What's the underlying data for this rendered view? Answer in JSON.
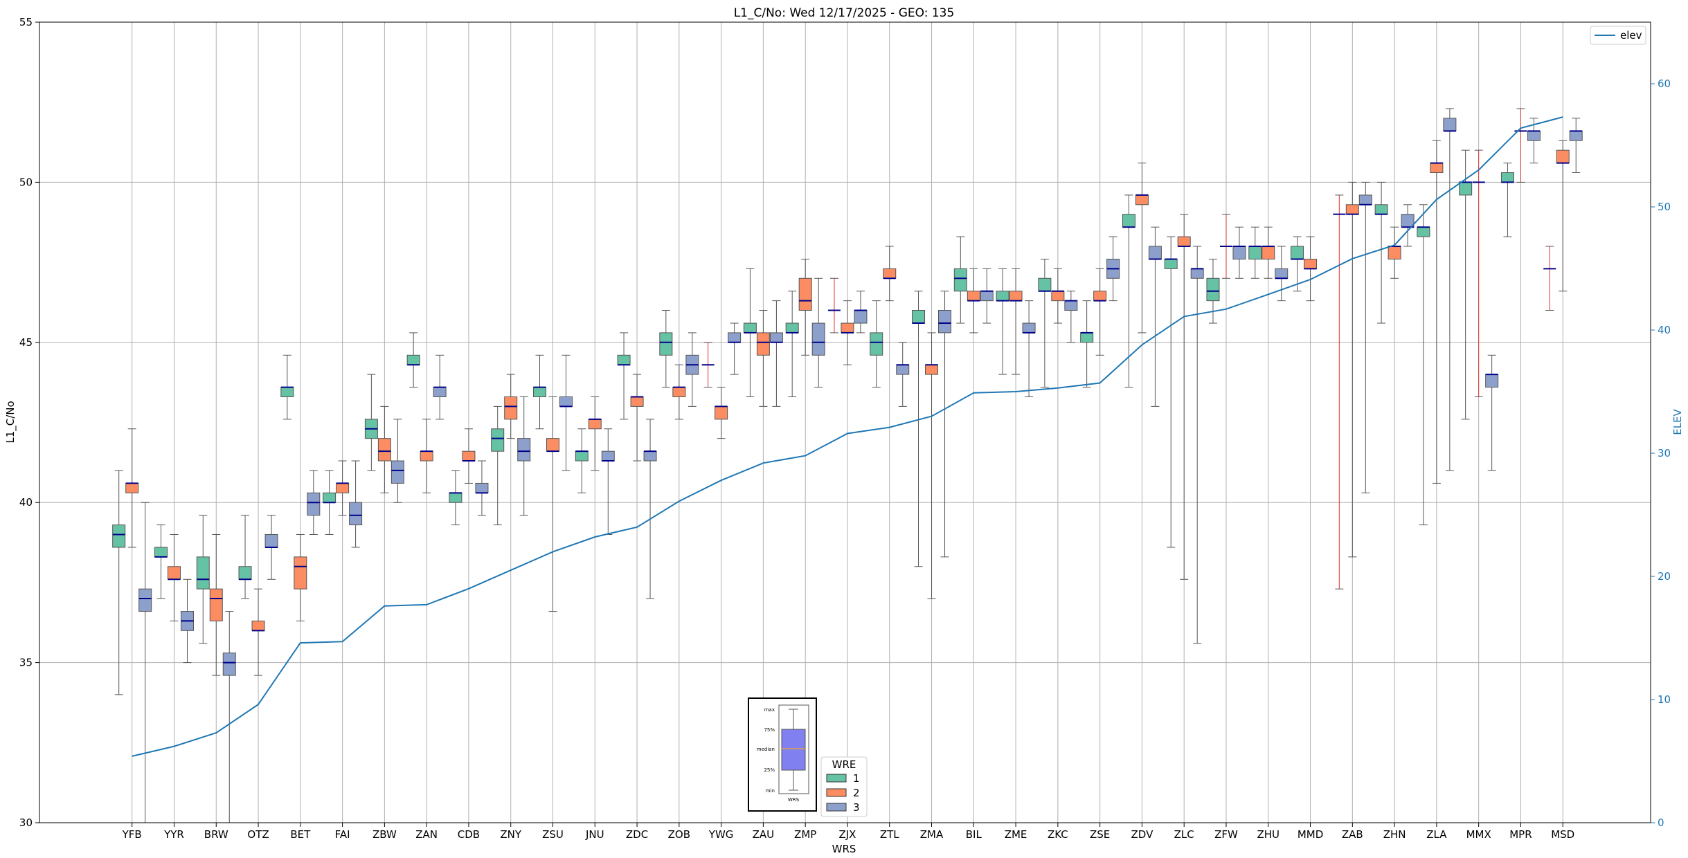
{
  "chart_data": {
    "type": "box",
    "title": "L1_C/No: Wed 12/17/2025 - GEO: 135",
    "xlabel": "WRS",
    "ylabel": "L1_C/No",
    "y2label": "ELEV",
    "ylim": [
      30,
      55
    ],
    "y2lim": [
      0,
      65
    ],
    "yticks": [
      30,
      35,
      40,
      45,
      50,
      55
    ],
    "y2ticks": [
      0,
      10,
      20,
      30,
      40,
      50,
      60
    ],
    "grid": true,
    "legend_line": "elev",
    "legend_title": "WRE",
    "legend_entries": [
      {
        "label": "1",
        "color": "#66c2a5"
      },
      {
        "label": "2",
        "color": "#fc8d62"
      },
      {
        "label": "3",
        "color": "#8da0cb"
      }
    ],
    "inset_labels": {
      "max": "max",
      "q3": "75%",
      "median": "median",
      "q1": "25%",
      "min": "min",
      "xlabel": "WRS"
    },
    "categories": [
      "YFB",
      "YYR",
      "BRW",
      "OTZ",
      "BET",
      "FAI",
      "ZBW",
      "ZAN",
      "CDB",
      "ZNY",
      "ZSU",
      "JNU",
      "ZDC",
      "ZOB",
      "YWG",
      "ZAU",
      "ZMP",
      "ZJX",
      "ZTL",
      "ZMA",
      "BIL",
      "ZME",
      "ZKC",
      "ZSE",
      "ZDV",
      "ZLC",
      "ZFW",
      "ZHU",
      "MMD",
      "ZAB",
      "ZHN",
      "ZLA",
      "MMX",
      "MPR",
      "MSD"
    ],
    "elev": [
      5.4,
      6.2,
      7.3,
      9.6,
      14.6,
      14.7,
      17.6,
      17.7,
      19.0,
      20.5,
      22.0,
      23.2,
      24.0,
      26.1,
      27.8,
      29.2,
      29.8,
      31.6,
      32.1,
      33.0,
      34.9,
      35.0,
      35.3,
      35.7,
      38.8,
      41.1,
      41.7,
      42.9,
      44.1,
      45.8,
      46.9,
      50.6,
      53.0,
      56.4,
      57.3
    ],
    "boxes": [
      {
        "cat": "YFB",
        "wre": 1,
        "min": 34.0,
        "q1": 38.6,
        "med": 39.0,
        "q3": 39.3,
        "max": 41.0
      },
      {
        "cat": "YFB",
        "wre": 2,
        "min": 38.6,
        "q1": 40.3,
        "med": 40.6,
        "q3": 40.6,
        "max": 42.3
      },
      {
        "cat": "YFB",
        "wre": 3,
        "min": 30.0,
        "q1": 36.6,
        "med": 37.0,
        "q3": 37.3,
        "max": 40.0
      },
      {
        "cat": "YYR",
        "wre": 1,
        "min": 37.0,
        "q1": 38.3,
        "med": 38.3,
        "q3": 38.6,
        "max": 39.3
      },
      {
        "cat": "YYR",
        "wre": 2,
        "min": 36.3,
        "q1": 37.6,
        "med": 37.6,
        "q3": 38.0,
        "max": 39.0
      },
      {
        "cat": "YYR",
        "wre": 3,
        "min": 35.0,
        "q1": 36.0,
        "med": 36.3,
        "q3": 36.6,
        "max": 37.6
      },
      {
        "cat": "BRW",
        "wre": 1,
        "min": 35.6,
        "q1": 37.3,
        "med": 37.6,
        "q3": 38.3,
        "max": 39.6
      },
      {
        "cat": "BRW",
        "wre": 2,
        "min": 34.6,
        "q1": 36.3,
        "med": 37.0,
        "q3": 37.3,
        "max": 39.0
      },
      {
        "cat": "BRW",
        "wre": 3,
        "min": 30.0,
        "q1": 34.6,
        "med": 35.0,
        "q3": 35.3,
        "max": 36.6
      },
      {
        "cat": "OTZ",
        "wre": 1,
        "min": 37.0,
        "q1": 37.6,
        "med": 37.6,
        "q3": 38.0,
        "max": 39.6
      },
      {
        "cat": "OTZ",
        "wre": 2,
        "min": 34.6,
        "q1": 36.0,
        "med": 36.0,
        "q3": 36.3,
        "max": 37.3
      },
      {
        "cat": "OTZ",
        "wre": 3,
        "min": 37.6,
        "q1": 38.6,
        "med": 38.6,
        "q3": 39.0,
        "max": 39.6
      },
      {
        "cat": "BET",
        "wre": 1,
        "min": 42.6,
        "q1": 43.3,
        "med": 43.6,
        "q3": 43.6,
        "max": 44.6
      },
      {
        "cat": "BET",
        "wre": 2,
        "min": 36.3,
        "q1": 37.3,
        "med": 38.0,
        "q3": 38.3,
        "max": 39.0
      },
      {
        "cat": "BET",
        "wre": 3,
        "min": 39.0,
        "q1": 39.6,
        "med": 40.0,
        "q3": 40.3,
        "max": 41.0
      },
      {
        "cat": "FAI",
        "wre": 1,
        "min": 39.0,
        "q1": 40.0,
        "med": 40.0,
        "q3": 40.3,
        "max": 41.0
      },
      {
        "cat": "FAI",
        "wre": 2,
        "min": 39.6,
        "q1": 40.3,
        "med": 40.6,
        "q3": 40.6,
        "max": 41.3
      },
      {
        "cat": "FAI",
        "wre": 3,
        "min": 38.6,
        "q1": 39.3,
        "med": 39.6,
        "q3": 40.0,
        "max": 41.3
      },
      {
        "cat": "ZBW",
        "wre": 1,
        "min": 41.0,
        "q1": 42.0,
        "med": 42.3,
        "q3": 42.6,
        "max": 44.0
      },
      {
        "cat": "ZBW",
        "wre": 2,
        "min": 40.3,
        "q1": 41.3,
        "med": 41.6,
        "q3": 42.0,
        "max": 43.0
      },
      {
        "cat": "ZBW",
        "wre": 3,
        "min": 40.0,
        "q1": 40.6,
        "med": 41.0,
        "q3": 41.3,
        "max": 42.6
      },
      {
        "cat": "ZAN",
        "wre": 1,
        "min": 43.6,
        "q1": 44.3,
        "med": 44.3,
        "q3": 44.6,
        "max": 45.3
      },
      {
        "cat": "ZAN",
        "wre": 2,
        "min": 40.3,
        "q1": 41.3,
        "med": 41.6,
        "q3": 41.6,
        "max": 42.6
      },
      {
        "cat": "ZAN",
        "wre": 3,
        "min": 42.6,
        "q1": 43.3,
        "med": 43.6,
        "q3": 43.6,
        "max": 44.6
      },
      {
        "cat": "CDB",
        "wre": 1,
        "min": 39.3,
        "q1": 40.0,
        "med": 40.3,
        "q3": 40.3,
        "max": 41.0
      },
      {
        "cat": "CDB",
        "wre": 2,
        "min": 40.6,
        "q1": 41.3,
        "med": 41.3,
        "q3": 41.6,
        "max": 42.3
      },
      {
        "cat": "CDB",
        "wre": 3,
        "min": 39.6,
        "q1": 40.3,
        "med": 40.3,
        "q3": 40.6,
        "max": 41.3
      },
      {
        "cat": "ZNY",
        "wre": 1,
        "min": 39.3,
        "q1": 41.6,
        "med": 42.0,
        "q3": 42.3,
        "max": 43.0
      },
      {
        "cat": "ZNY",
        "wre": 2,
        "min": 42.0,
        "q1": 42.6,
        "med": 43.0,
        "q3": 43.3,
        "max": 44.0
      },
      {
        "cat": "ZNY",
        "wre": 3,
        "min": 39.6,
        "q1": 41.3,
        "med": 41.6,
        "q3": 42.0,
        "max": 43.3
      },
      {
        "cat": "ZSU",
        "wre": 1,
        "min": 42.3,
        "q1": 43.3,
        "med": 43.6,
        "q3": 43.6,
        "max": 44.6
      },
      {
        "cat": "ZSU",
        "wre": 2,
        "min": 36.6,
        "q1": 41.6,
        "med": 41.6,
        "q3": 42.0,
        "max": 43.3
      },
      {
        "cat": "ZSU",
        "wre": 3,
        "min": 41.0,
        "q1": 43.0,
        "med": 43.0,
        "q3": 43.3,
        "max": 44.6
      },
      {
        "cat": "JNU",
        "wre": 1,
        "min": 40.3,
        "q1": 41.3,
        "med": 41.6,
        "q3": 41.6,
        "max": 42.3
      },
      {
        "cat": "JNU",
        "wre": 2,
        "min": 41.0,
        "q1": 42.3,
        "med": 42.6,
        "q3": 42.6,
        "max": 43.3
      },
      {
        "cat": "JNU",
        "wre": 3,
        "min": 39.0,
        "q1": 41.3,
        "med": 41.3,
        "q3": 41.6,
        "max": 42.3
      },
      {
        "cat": "ZDC",
        "wre": 1,
        "min": 42.6,
        "q1": 44.3,
        "med": 44.3,
        "q3": 44.6,
        "max": 45.3
      },
      {
        "cat": "ZDC",
        "wre": 2,
        "min": 41.3,
        "q1": 43.0,
        "med": 43.3,
        "q3": 43.3,
        "max": 44.0
      },
      {
        "cat": "ZDC",
        "wre": 3,
        "min": 37.0,
        "q1": 41.3,
        "med": 41.6,
        "q3": 41.6,
        "max": 42.6
      },
      {
        "cat": "ZOB",
        "wre": 1,
        "min": 43.6,
        "q1": 44.6,
        "med": 45.0,
        "q3": 45.3,
        "max": 46.0
      },
      {
        "cat": "ZOB",
        "wre": 2,
        "min": 42.6,
        "q1": 43.3,
        "med": 43.6,
        "q3": 43.6,
        "max": 44.3
      },
      {
        "cat": "ZOB",
        "wre": 3,
        "min": 43.0,
        "q1": 44.0,
        "med": 44.3,
        "q3": 44.6,
        "max": 45.3
      },
      {
        "cat": "YWG",
        "wre": 1,
        "min": 43.6,
        "q1": 44.3,
        "med": 44.3,
        "q3": 44.3,
        "max": 45.0
      },
      {
        "cat": "YWG",
        "wre": 2,
        "min": 42.0,
        "q1": 42.6,
        "med": 43.0,
        "q3": 43.0,
        "max": 43.6
      },
      {
        "cat": "YWG",
        "wre": 3,
        "min": 44.0,
        "q1": 45.0,
        "med": 45.0,
        "q3": 45.3,
        "max": 45.6
      },
      {
        "cat": "ZAU",
        "wre": 1,
        "min": 43.3,
        "q1": 45.3,
        "med": 45.3,
        "q3": 45.6,
        "max": 47.3
      },
      {
        "cat": "ZAU",
        "wre": 2,
        "min": 43.0,
        "q1": 44.6,
        "med": 45.0,
        "q3": 45.3,
        "max": 46.0
      },
      {
        "cat": "ZAU",
        "wre": 3,
        "min": 43.0,
        "q1": 45.0,
        "med": 45.0,
        "q3": 45.3,
        "max": 46.3
      },
      {
        "cat": "ZMP",
        "wre": 1,
        "min": 43.3,
        "q1": 45.3,
        "med": 45.3,
        "q3": 45.6,
        "max": 46.6
      },
      {
        "cat": "ZMP",
        "wre": 2,
        "min": 44.6,
        "q1": 46.0,
        "med": 46.3,
        "q3": 47.0,
        "max": 47.6
      },
      {
        "cat": "ZMP",
        "wre": 3,
        "min": 43.6,
        "q1": 44.6,
        "med": 45.0,
        "q3": 45.6,
        "max": 47.0
      },
      {
        "cat": "ZJX",
        "wre": 1,
        "min": 45.3,
        "q1": 46.0,
        "med": 46.0,
        "q3": 46.0,
        "max": 47.0
      },
      {
        "cat": "ZJX",
        "wre": 2,
        "min": 44.3,
        "q1": 45.3,
        "med": 45.3,
        "q3": 45.6,
        "max": 46.3
      },
      {
        "cat": "ZJX",
        "wre": 3,
        "min": 45.3,
        "q1": 45.6,
        "med": 46.0,
        "q3": 46.0,
        "max": 46.6
      },
      {
        "cat": "ZTL",
        "wre": 1,
        "min": 43.6,
        "q1": 44.6,
        "med": 45.0,
        "q3": 45.3,
        "max": 46.3
      },
      {
        "cat": "ZTL",
        "wre": 2,
        "min": 46.3,
        "q1": 47.0,
        "med": 47.0,
        "q3": 47.3,
        "max": 48.0
      },
      {
        "cat": "ZTL",
        "wre": 3,
        "min": 43.0,
        "q1": 44.0,
        "med": 44.3,
        "q3": 44.3,
        "max": 45.0
      },
      {
        "cat": "ZMA",
        "wre": 1,
        "min": 38.0,
        "q1": 45.6,
        "med": 45.6,
        "q3": 46.0,
        "max": 46.6
      },
      {
        "cat": "ZMA",
        "wre": 2,
        "min": 37.0,
        "q1": 44.0,
        "med": 44.3,
        "q3": 44.3,
        "max": 45.3
      },
      {
        "cat": "ZMA",
        "wre": 3,
        "min": 38.3,
        "q1": 45.3,
        "med": 45.6,
        "q3": 46.0,
        "max": 46.6
      },
      {
        "cat": "BIL",
        "wre": 1,
        "min": 45.6,
        "q1": 46.6,
        "med": 47.0,
        "q3": 47.3,
        "max": 48.3
      },
      {
        "cat": "BIL",
        "wre": 2,
        "min": 45.3,
        "q1": 46.3,
        "med": 46.3,
        "q3": 46.6,
        "max": 47.3
      },
      {
        "cat": "BIL",
        "wre": 3,
        "min": 45.6,
        "q1": 46.3,
        "med": 46.6,
        "q3": 46.6,
        "max": 47.3
      },
      {
        "cat": "ZME",
        "wre": 1,
        "min": 44.0,
        "q1": 46.3,
        "med": 46.3,
        "q3": 46.6,
        "max": 47.3
      },
      {
        "cat": "ZME",
        "wre": 2,
        "min": 44.0,
        "q1": 46.3,
        "med": 46.3,
        "q3": 46.6,
        "max": 47.3
      },
      {
        "cat": "ZME",
        "wre": 3,
        "min": 43.3,
        "q1": 45.3,
        "med": 45.3,
        "q3": 45.6,
        "max": 46.3
      },
      {
        "cat": "ZKC",
        "wre": 1,
        "min": 43.6,
        "q1": 46.6,
        "med": 46.6,
        "q3": 47.0,
        "max": 47.6
      },
      {
        "cat": "ZKC",
        "wre": 2,
        "min": 45.6,
        "q1": 46.3,
        "med": 46.6,
        "q3": 46.6,
        "max": 47.3
      },
      {
        "cat": "ZKC",
        "wre": 3,
        "min": 45.0,
        "q1": 46.0,
        "med": 46.3,
        "q3": 46.3,
        "max": 46.6
      },
      {
        "cat": "ZSE",
        "wre": 1,
        "min": 43.6,
        "q1": 45.0,
        "med": 45.3,
        "q3": 45.3,
        "max": 46.3
      },
      {
        "cat": "ZSE",
        "wre": 2,
        "min": 44.6,
        "q1": 46.3,
        "med": 46.3,
        "q3": 46.6,
        "max": 47.3
      },
      {
        "cat": "ZSE",
        "wre": 3,
        "min": 46.3,
        "q1": 47.0,
        "med": 47.3,
        "q3": 47.6,
        "max": 48.3
      },
      {
        "cat": "ZDV",
        "wre": 1,
        "min": 43.6,
        "q1": 48.6,
        "med": 48.6,
        "q3": 49.0,
        "max": 49.6
      },
      {
        "cat": "ZDV",
        "wre": 2,
        "min": 45.3,
        "q1": 49.3,
        "med": 49.6,
        "q3": 49.6,
        "max": 50.6
      },
      {
        "cat": "ZDV",
        "wre": 3,
        "min": 43.0,
        "q1": 47.6,
        "med": 47.6,
        "q3": 48.0,
        "max": 48.6
      },
      {
        "cat": "ZLC",
        "wre": 1,
        "min": 38.6,
        "q1": 47.3,
        "med": 47.6,
        "q3": 47.6,
        "max": 48.3
      },
      {
        "cat": "ZLC",
        "wre": 2,
        "min": 37.6,
        "q1": 48.0,
        "med": 48.0,
        "q3": 48.3,
        "max": 49.0
      },
      {
        "cat": "ZLC",
        "wre": 3,
        "min": 35.6,
        "q1": 47.0,
        "med": 47.3,
        "q3": 47.3,
        "max": 48.0
      },
      {
        "cat": "ZFW",
        "wre": 1,
        "min": 45.6,
        "q1": 46.3,
        "med": 46.6,
        "q3": 47.0,
        "max": 47.6
      },
      {
        "cat": "ZFW",
        "wre": 2,
        "min": 47.0,
        "q1": 48.0,
        "med": 48.0,
        "q3": 48.0,
        "max": 49.0
      },
      {
        "cat": "ZFW",
        "wre": 3,
        "min": 47.0,
        "q1": 47.6,
        "med": 48.0,
        "q3": 48.0,
        "max": 48.6
      },
      {
        "cat": "ZHU",
        "wre": 1,
        "min": 47.0,
        "q1": 47.6,
        "med": 48.0,
        "q3": 48.0,
        "max": 48.6
      },
      {
        "cat": "ZHU",
        "wre": 2,
        "min": 47.0,
        "q1": 47.6,
        "med": 48.0,
        "q3": 48.0,
        "max": 48.6
      },
      {
        "cat": "ZHU",
        "wre": 3,
        "min": 46.3,
        "q1": 47.0,
        "med": 47.0,
        "q3": 47.3,
        "max": 48.0
      },
      {
        "cat": "MMD",
        "wre": 1,
        "min": 46.6,
        "q1": 47.6,
        "med": 47.6,
        "q3": 48.0,
        "max": 48.3
      },
      {
        "cat": "MMD",
        "wre": 2,
        "min": 46.3,
        "q1": 47.3,
        "med": 47.3,
        "q3": 47.6,
        "max": 48.3
      },
      {
        "cat": "ZAB",
        "wre": 1,
        "min": 37.3,
        "q1": 49.0,
        "med": 49.0,
        "q3": 49.0,
        "max": 49.6
      },
      {
        "cat": "ZAB",
        "wre": 2,
        "min": 38.3,
        "q1": 49.0,
        "med": 49.0,
        "q3": 49.3,
        "max": 50.0
      },
      {
        "cat": "ZAB",
        "wre": 3,
        "min": 40.3,
        "q1": 49.3,
        "med": 49.3,
        "q3": 49.6,
        "max": 50.0
      },
      {
        "cat": "ZHN",
        "wre": 1,
        "min": 45.6,
        "q1": 49.0,
        "med": 49.0,
        "q3": 49.3,
        "max": 50.0
      },
      {
        "cat": "ZHN",
        "wre": 2,
        "min": 47.0,
        "q1": 47.6,
        "med": 48.0,
        "q3": 48.0,
        "max": 48.6
      },
      {
        "cat": "ZHN",
        "wre": 3,
        "min": 48.0,
        "q1": 48.6,
        "med": 48.6,
        "q3": 49.0,
        "max": 49.3
      },
      {
        "cat": "ZLA",
        "wre": 1,
        "min": 39.3,
        "q1": 48.3,
        "med": 48.6,
        "q3": 48.6,
        "max": 49.3
      },
      {
        "cat": "ZLA",
        "wre": 2,
        "min": 40.6,
        "q1": 50.3,
        "med": 50.6,
        "q3": 50.6,
        "max": 51.3
      },
      {
        "cat": "ZLA",
        "wre": 3,
        "min": 41.0,
        "q1": 51.6,
        "med": 51.6,
        "q3": 52.0,
        "max": 52.3
      },
      {
        "cat": "MMX",
        "wre": 1,
        "min": 42.6,
        "q1": 49.6,
        "med": 50.0,
        "q3": 50.0,
        "max": 51.0
      },
      {
        "cat": "MMX",
        "wre": 2,
        "min": 43.3,
        "q1": 50.0,
        "med": 50.0,
        "q3": 50.0,
        "max": 51.0
      },
      {
        "cat": "MMX",
        "wre": 3,
        "min": 41.0,
        "q1": 43.6,
        "med": 44.0,
        "q3": 44.0,
        "max": 44.6
      },
      {
        "cat": "MPR",
        "wre": 1,
        "min": 48.3,
        "q1": 50.0,
        "med": 50.0,
        "q3": 50.3,
        "max": 50.6
      },
      {
        "cat": "MPR",
        "wre": 2,
        "min": 50.0,
        "q1": 51.6,
        "med": 51.6,
        "q3": 51.6,
        "max": 52.3
      },
      {
        "cat": "MPR",
        "wre": 3,
        "min": 50.6,
        "q1": 51.3,
        "med": 51.6,
        "q3": 51.6,
        "max": 52.0
      },
      {
        "cat": "MSD",
        "wre": 1,
        "min": 46.0,
        "q1": 47.3,
        "med": 47.3,
        "q3": 47.3,
        "max": 48.0
      },
      {
        "cat": "MSD",
        "wre": 2,
        "min": 46.6,
        "q1": 50.6,
        "med": 50.6,
        "q3": 51.0,
        "max": 51.3
      },
      {
        "cat": "MSD",
        "wre": 3,
        "min": 50.3,
        "q1": 51.3,
        "med": 51.6,
        "q3": 51.6,
        "max": 52.0
      }
    ]
  }
}
